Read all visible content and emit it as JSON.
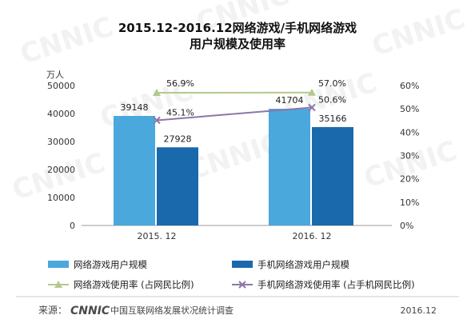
{
  "chart_data": {
    "type": "bar",
    "title_lines": [
      "2015.12-2016.12网络游戏/手机网络游戏",
      "用户规模及使用率"
    ],
    "y_left_unit": "万人",
    "y_left_ticks": [
      "0",
      "10000",
      "20000",
      "30000",
      "40000",
      "50000"
    ],
    "y_left_range": [
      0,
      50000
    ],
    "y_right_ticks": [
      "0%",
      "10%",
      "20%",
      "30%",
      "40%",
      "50%",
      "60%"
    ],
    "y_right_range": [
      0,
      60
    ],
    "categories": [
      "2015. 12",
      "2016. 12"
    ],
    "series": [
      {
        "name": "网络游戏用户规模",
        "kind": "bar",
        "axis": "left",
        "color": "#4aa8dc",
        "values": [
          39148,
          41704
        ],
        "labels": [
          "39148",
          "41704"
        ]
      },
      {
        "name": "手机网络游戏用户规模",
        "kind": "bar",
        "axis": "left",
        "color": "#1a69ad",
        "values": [
          27928,
          35166
        ],
        "labels": [
          "27928",
          "35166"
        ]
      },
      {
        "name": "网络游戏使用率 (占网民比例)",
        "kind": "line",
        "axis": "right",
        "color": "#b5c98a",
        "marker": "triangle",
        "values": [
          56.9,
          57.0
        ],
        "labels": [
          "56.9%",
          "57.0%"
        ]
      },
      {
        "name": "手机网络游戏使用率 (占手机网民比例)",
        "kind": "line",
        "axis": "right",
        "color": "#8b77a8",
        "marker": "x",
        "values": [
          45.1,
          50.6
        ],
        "labels": [
          "45.1%",
          "50.6%"
        ]
      }
    ],
    "legend_position": "bottom",
    "grid": false
  },
  "footer": {
    "source_label": "来源：",
    "source_logo": "CNNIC",
    "source_org": "中国互联网络发展状况统计调查",
    "date": "2016.12"
  },
  "watermark": "CNNIC",
  "colors": {
    "footer_text": "#444444",
    "logo": "#4a4a4a"
  }
}
